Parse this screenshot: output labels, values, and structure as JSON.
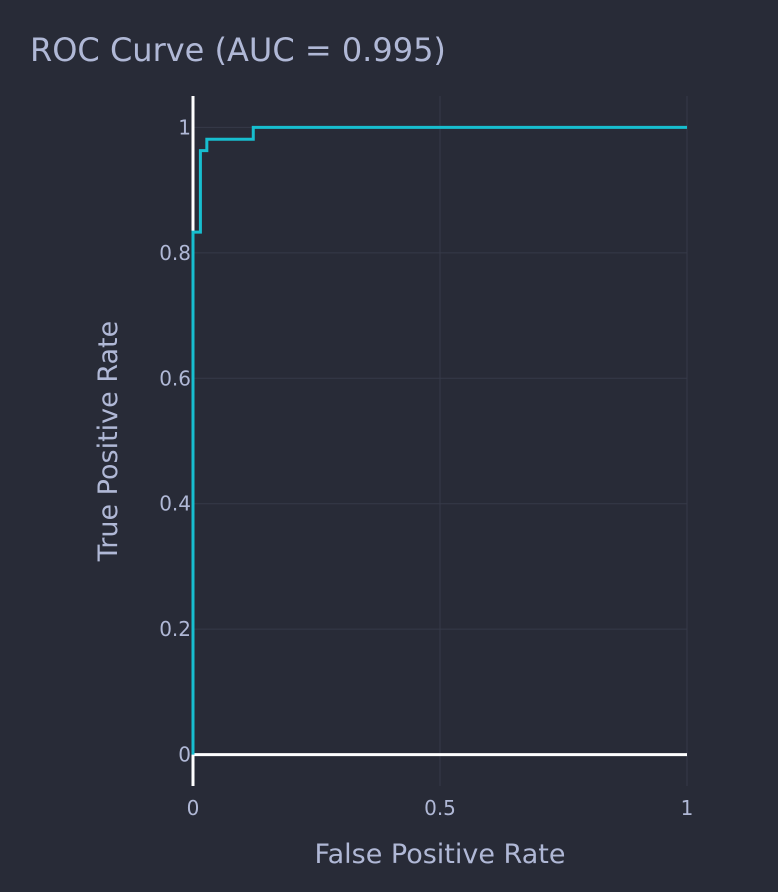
{
  "chart_data": {
    "type": "line",
    "title": "ROC Curve (AUC = 0.995)",
    "xlabel": "False Positive Rate",
    "ylabel": "True Positive Rate",
    "xlim": [
      0,
      1
    ],
    "ylim": [
      -0.05,
      1.05
    ],
    "x_ticks": [
      0,
      0.5,
      1
    ],
    "x_tick_labels": [
      "0",
      "0.5",
      "1"
    ],
    "y_ticks": [
      0,
      0.2,
      0.4,
      0.6,
      0.8,
      1
    ],
    "y_tick_labels": [
      "0",
      "0.2",
      "0.4",
      "0.6",
      "0.8",
      "1"
    ],
    "grid": true,
    "legend": "none",
    "series": [
      {
        "color": "#17becf",
        "line_shape": "step",
        "x": [
          0,
          0,
          0.015,
          0.015,
          0.028,
          0.028,
          0.122,
          0.122,
          1
        ],
        "y": [
          0,
          0.833,
          0.833,
          0.963,
          0.963,
          0.981,
          0.981,
          1,
          1
        ]
      }
    ]
  },
  "colors": {
    "background": "#282b37",
    "grid": "#363a48",
    "axis_line": "#ffffff",
    "text": "#b0b8d6",
    "line": "#17becf"
  }
}
